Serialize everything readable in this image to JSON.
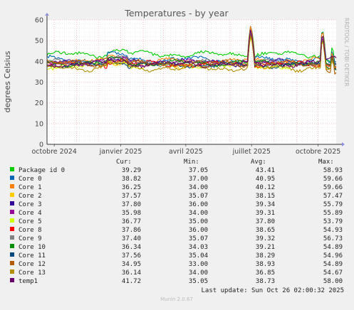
{
  "chart_data": {
    "type": "line",
    "title": "Temperatures - by year",
    "ylabel": "degrees Celsius",
    "xlabel": "",
    "ylim": [
      0,
      60
    ],
    "yticks": [
      0,
      10,
      20,
      30,
      40,
      50,
      60
    ],
    "xlim": [
      "2024-09-21",
      "2025-10-26"
    ],
    "xticks": [
      {
        "date": "2024-10-01",
        "label": "octobre 2024"
      },
      {
        "date": "2025-01-01",
        "label": "janvier 2025"
      },
      {
        "date": "2025-04-01",
        "label": "avril 2025"
      },
      {
        "date": "2025-07-01",
        "label": "juillet 2025"
      },
      {
        "date": "2025-10-01",
        "label": "octobre 2025"
      }
    ],
    "grid": true,
    "side_label": "RRDTOOL / TOBI OETIKER",
    "legend_headers": {
      "cur": "Cur:",
      "min": "Min:",
      "avg": "Avg:",
      "max": "Max:"
    },
    "series": [
      {
        "name": "Package id 0",
        "color": "#00cc00",
        "cur": "39.29",
        "min": "37.05",
        "avg": "43.41",
        "max": "58.93"
      },
      {
        "name": "Core 0",
        "color": "#0066b3",
        "cur": "38.82",
        "min": "37.00",
        "avg": "40.95",
        "max": "59.66"
      },
      {
        "name": "Core 1",
        "color": "#ff8000",
        "cur": "36.25",
        "min": "34.00",
        "avg": "40.12",
        "max": "59.66"
      },
      {
        "name": "Core 2",
        "color": "#ffcc00",
        "cur": "37.57",
        "min": "35.07",
        "avg": "38.15",
        "max": "57.47"
      },
      {
        "name": "Core 3",
        "color": "#330099",
        "cur": "37.80",
        "min": "36.00",
        "avg": "39.34",
        "max": "55.79"
      },
      {
        "name": "Core 4",
        "color": "#990099",
        "cur": "35.98",
        "min": "34.00",
        "avg": "39.31",
        "max": "55.89"
      },
      {
        "name": "Core 5",
        "color": "#ccff00",
        "cur": "36.77",
        "min": "35.00",
        "avg": "37.80",
        "max": "53.79"
      },
      {
        "name": "Core 8",
        "color": "#ff0000",
        "cur": "37.86",
        "min": "36.00",
        "avg": "38.65",
        "max": "54.93"
      },
      {
        "name": "Core 9",
        "color": "#808080",
        "cur": "37.40",
        "min": "35.07",
        "avg": "39.32",
        "max": "56.73"
      },
      {
        "name": "Core 10",
        "color": "#008f00",
        "cur": "36.34",
        "min": "34.03",
        "avg": "39.21",
        "max": "54.89"
      },
      {
        "name": "Core 11",
        "color": "#00487d",
        "cur": "37.56",
        "min": "35.04",
        "avg": "38.29",
        "max": "54.96"
      },
      {
        "name": "Core 12",
        "color": "#b35a00",
        "cur": "34.95",
        "min": "33.00",
        "avg": "38.93",
        "max": "54.89"
      },
      {
        "name": "Core 13",
        "color": "#b38f00",
        "cur": "36.14",
        "min": "34.00",
        "avg": "36.85",
        "max": "54.67"
      },
      {
        "name": "temp1",
        "color": "#6b006b",
        "cur": "41.72",
        "min": "35.05",
        "avg": "38.73",
        "max": "58.00"
      }
    ]
  },
  "footer": {
    "last_update": "Last update: Sun Oct 26 02:00:32 2025",
    "version": "Munin 2.0.67"
  }
}
